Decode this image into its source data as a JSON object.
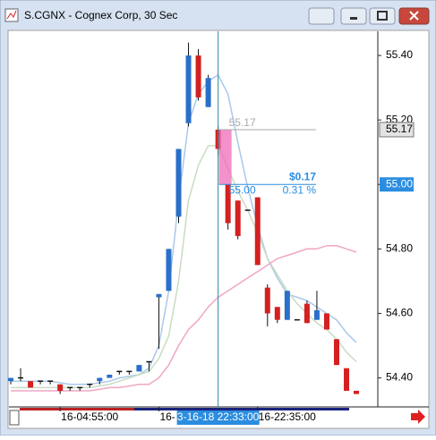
{
  "window": {
    "title": "S.CGNX - Cognex Corp, 30 Sec"
  },
  "chart_data": {
    "type": "candlestick",
    "categories": [
      null,
      null,
      null,
      null,
      null,
      "16-04:55:00",
      null,
      null,
      null,
      null,
      null,
      null,
      null,
      null,
      null,
      "16-",
      null,
      null,
      null,
      null,
      null,
      null,
      null,
      null,
      null,
      "16-22:35:00",
      null,
      null,
      null,
      null,
      null,
      null,
      null,
      null,
      null,
      null
    ],
    "open": [
      54.39,
      54.4,
      54.39,
      54.39,
      54.39,
      54.38,
      54.37,
      54.37,
      54.38,
      54.39,
      54.4,
      54.42,
      54.42,
      54.42,
      54.45,
      54.65,
      54.67,
      54.9,
      55.19,
      55.4,
      55.24,
      55.17,
      55.0,
      54.95,
      54.92,
      54.96,
      54.68,
      54.62,
      54.58,
      54.58,
      54.63,
      54.58,
      54.6,
      54.52,
      54.43,
      54.36
    ],
    "high": [
      54.4,
      54.43,
      54.39,
      54.39,
      54.39,
      54.38,
      54.37,
      54.37,
      54.38,
      54.4,
      54.41,
      54.42,
      54.42,
      54.44,
      54.45,
      54.66,
      54.8,
      55.11,
      55.44,
      55.42,
      55.34,
      55.18,
      55.0,
      54.95,
      54.92,
      54.96,
      54.69,
      54.62,
      54.67,
      54.58,
      54.64,
      54.67,
      54.6,
      54.52,
      54.43,
      54.36
    ],
    "low": [
      54.38,
      54.39,
      54.37,
      54.38,
      54.38,
      54.35,
      54.36,
      54.36,
      54.37,
      54.38,
      54.4,
      54.41,
      54.41,
      54.42,
      54.42,
      54.49,
      54.67,
      54.88,
      55.18,
      55.26,
      55.24,
      55.09,
      54.86,
      54.83,
      54.92,
      54.75,
      54.56,
      54.57,
      54.58,
      54.58,
      54.57,
      54.58,
      54.55,
      54.44,
      54.36,
      54.35
    ],
    "close": [
      54.4,
      54.4,
      54.37,
      54.39,
      54.39,
      54.36,
      54.37,
      54.37,
      54.38,
      54.4,
      54.41,
      54.42,
      54.42,
      54.44,
      54.45,
      54.66,
      54.8,
      55.11,
      55.4,
      55.27,
      55.33,
      55.11,
      54.88,
      54.84,
      54.92,
      54.75,
      54.6,
      54.58,
      54.67,
      54.58,
      54.57,
      54.61,
      54.55,
      54.44,
      54.36,
      54.35
    ],
    "up_color": "#2a6fc9",
    "down_color": "#d42020",
    "overlays": [
      {
        "color": "#a9c8ea",
        "values": [
          54.39,
          54.39,
          54.39,
          54.39,
          54.39,
          54.385,
          54.38,
          54.38,
          54.38,
          54.385,
          54.39,
          54.4,
          54.405,
          54.41,
          54.43,
          54.5,
          54.67,
          54.95,
          55.19,
          55.28,
          55.32,
          55.34,
          55.28,
          55.13,
          54.99,
          54.87,
          54.77,
          54.71,
          54.66,
          54.65,
          54.64,
          54.62,
          54.6,
          54.58,
          54.54,
          54.51
        ]
      },
      {
        "color": "#c9dcc4",
        "values": [
          54.37,
          54.37,
          54.37,
          54.37,
          54.37,
          54.37,
          54.37,
          54.37,
          54.37,
          54.375,
          54.38,
          54.39,
          54.4,
          54.41,
          54.42,
          54.46,
          54.53,
          54.7,
          54.95,
          55.06,
          55.12,
          55.12,
          55.05,
          54.98,
          54.92,
          54.85,
          54.77,
          54.72,
          54.67,
          54.63,
          54.6,
          54.57,
          54.55,
          54.52,
          54.48,
          54.45
        ]
      },
      {
        "color": "#f0a6c4",
        "values": [
          54.36,
          54.36,
          54.36,
          54.36,
          54.36,
          54.36,
          54.36,
          54.36,
          54.36,
          54.365,
          54.37,
          54.37,
          54.375,
          54.38,
          54.38,
          54.4,
          54.44,
          54.5,
          54.55,
          54.58,
          54.62,
          54.65,
          54.67,
          54.69,
          54.71,
          54.73,
          54.75,
          54.77,
          54.78,
          54.79,
          54.8,
          54.8,
          54.81,
          54.81,
          54.8,
          54.79
        ]
      }
    ],
    "ylim": [
      54.31,
      55.475
    ],
    "yticks": [
      {
        "value": 55.4,
        "label": "55.40"
      },
      {
        "value": 55.2,
        "label": "55.20"
      },
      {
        "value": 55,
        "label": "55.00"
      },
      {
        "value": 54.8,
        "label": "54.80"
      },
      {
        "value": 54.6,
        "label": "54.60"
      },
      {
        "value": 54.4,
        "label": "54.40"
      }
    ],
    "cursor_time": "3-16-18 22:33:00",
    "measure": {
      "from": 55.17,
      "to": {
        "value": 55,
        "label": "55.00"
      },
      "change": {
        "value": 0.17,
        "label": "$0.17"
      },
      "percent": {
        "value": 0.31,
        "label": "0.31 %"
      }
    }
  }
}
